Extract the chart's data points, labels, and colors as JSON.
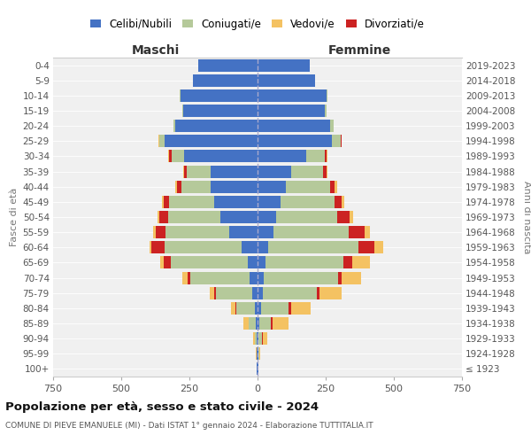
{
  "age_groups": [
    "100+",
    "95-99",
    "90-94",
    "85-89",
    "80-84",
    "75-79",
    "70-74",
    "65-69",
    "60-64",
    "55-59",
    "50-54",
    "45-49",
    "40-44",
    "35-39",
    "30-34",
    "25-29",
    "20-24",
    "15-19",
    "10-14",
    "5-9",
    "0-4"
  ],
  "birth_years": [
    "≤ 1923",
    "1924-1928",
    "1929-1933",
    "1934-1938",
    "1939-1943",
    "1944-1948",
    "1949-1953",
    "1954-1958",
    "1959-1963",
    "1964-1968",
    "1969-1973",
    "1974-1978",
    "1979-1983",
    "1984-1988",
    "1989-1993",
    "1994-1998",
    "1999-2003",
    "2004-2008",
    "2009-2013",
    "2014-2018",
    "2019-2023"
  ],
  "colors": {
    "celibe": "#4472c4",
    "coniugato": "#b5c99a",
    "vedovo": "#f4c262",
    "divorziato": "#cc2222"
  },
  "maschi": {
    "celibe": [
      2,
      2,
      3,
      6,
      10,
      18,
      28,
      35,
      58,
      105,
      135,
      158,
      172,
      172,
      268,
      342,
      302,
      272,
      282,
      237,
      217
    ],
    "coniugato": [
      0,
      2,
      6,
      28,
      68,
      133,
      218,
      282,
      282,
      232,
      192,
      167,
      107,
      87,
      47,
      17,
      7,
      3,
      3,
      0,
      0
    ],
    "vedovo": [
      0,
      2,
      6,
      18,
      18,
      18,
      18,
      12,
      7,
      7,
      7,
      7,
      7,
      3,
      3,
      3,
      0,
      0,
      0,
      0,
      0
    ],
    "divorziato": [
      0,
      0,
      0,
      0,
      3,
      7,
      12,
      28,
      48,
      38,
      32,
      20,
      17,
      12,
      10,
      3,
      0,
      0,
      0,
      0,
      0
    ]
  },
  "femmine": {
    "nubile": [
      2,
      2,
      3,
      6,
      12,
      18,
      23,
      28,
      38,
      58,
      68,
      83,
      103,
      123,
      178,
      272,
      267,
      247,
      252,
      212,
      192
    ],
    "coniugata": [
      0,
      3,
      12,
      43,
      103,
      198,
      273,
      288,
      333,
      278,
      223,
      198,
      163,
      118,
      68,
      33,
      12,
      5,
      3,
      0,
      0
    ],
    "vedova": [
      0,
      5,
      18,
      58,
      73,
      83,
      73,
      63,
      33,
      18,
      12,
      10,
      7,
      5,
      3,
      0,
      0,
      0,
      0,
      0,
      0
    ],
    "divorziata": [
      0,
      0,
      3,
      7,
      7,
      10,
      12,
      33,
      58,
      58,
      48,
      28,
      18,
      12,
      7,
      3,
      0,
      0,
      0,
      0,
      0
    ]
  },
  "xlim": 750,
  "title": "Popolazione per età, sesso e stato civile - 2024",
  "subtitle": "COMUNE DI PIEVE EMANUELE (MI) - Dati ISTAT 1° gennaio 2024 - Elaborazione TUTTITALIA.IT",
  "xlabel_left": "Maschi",
  "xlabel_right": "Femmine",
  "ylabel_left": "Fasce di età",
  "ylabel_right": "Anni di nascita",
  "legend_labels": [
    "Celibi/Nubili",
    "Coniugati/e",
    "Vedovi/e",
    "Divorziati/e"
  ],
  "bg_color": "#f0f0f0"
}
